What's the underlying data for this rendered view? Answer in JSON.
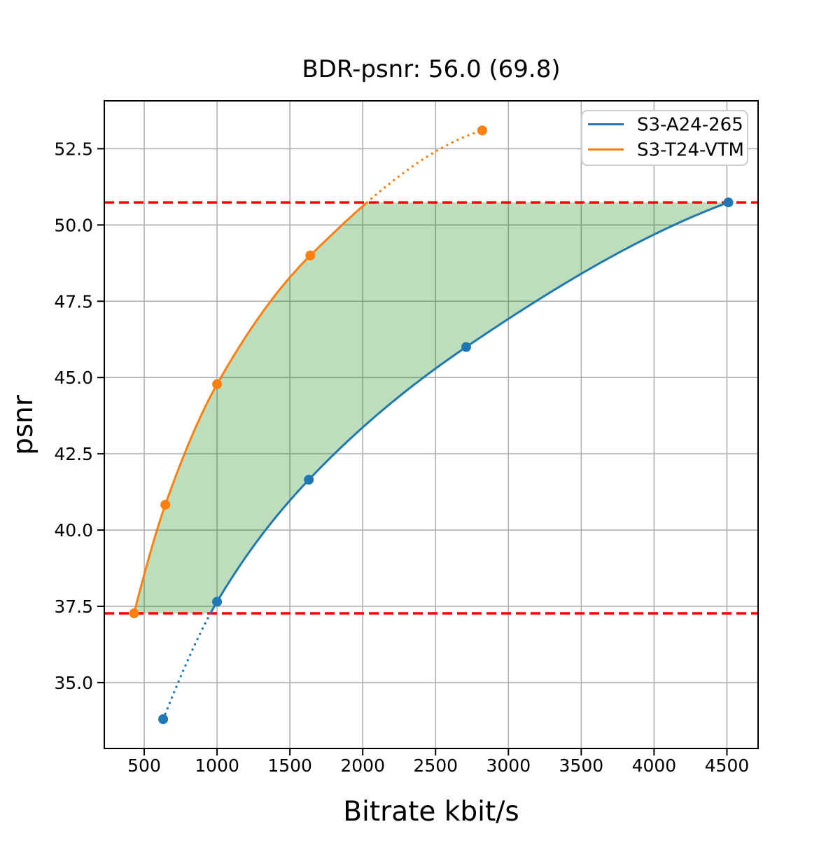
{
  "figure": {
    "background": "#ffffff"
  },
  "chart_data": {
    "type": "line",
    "title": "BDR-psnr: 56.0 (69.8)",
    "xlabel": "Bitrate kbit/s",
    "ylabel": "psnr",
    "xlim": [
      226,
      4714
    ],
    "ylim": [
      32.84,
      54.07
    ],
    "grid": true,
    "grid_color": "#b0b0b0",
    "legend_position": "upper right",
    "xticks": [
      500,
      1000,
      1500,
      2000,
      2500,
      3000,
      3500,
      4000,
      4500
    ],
    "xtick_labels": [
      "500",
      "1000",
      "1500",
      "2000",
      "2500",
      "3000",
      "3500",
      "4000",
      "4500"
    ],
    "yticks": [
      35.0,
      37.5,
      40.0,
      42.5,
      45.0,
      47.5,
      50.0,
      52.5
    ],
    "ytick_labels": [
      "35.0",
      "37.5",
      "40.0",
      "42.5",
      "45.0",
      "47.5",
      "50.0",
      "52.5"
    ],
    "series": [
      {
        "name": "S3-A24-265",
        "color": "#1f77b4",
        "marker": "circle",
        "line_style": "solid-inside-overlap-dotted-outside",
        "points": [
          [
            630,
            33.8
          ],
          [
            1000,
            37.65
          ],
          [
            1630,
            41.65
          ],
          [
            2710,
            46.0
          ],
          [
            4510,
            50.74
          ]
        ]
      },
      {
        "name": "S3-T24-VTM",
        "color": "#ff7f0e",
        "marker": "circle",
        "line_style": "solid-inside-overlap-dotted-outside",
        "points": [
          [
            430,
            37.27
          ],
          [
            645,
            40.83
          ],
          [
            1000,
            44.78
          ],
          [
            1640,
            49.0
          ],
          [
            2820,
            53.1
          ]
        ]
      }
    ],
    "overlap_band": {
      "lower_psnr": 37.27,
      "upper_psnr": 50.74,
      "line_color": "#ff0000",
      "line_style": "dashed",
      "fill_color": "#008000",
      "fill_opacity": 0.26
    },
    "legend": {
      "entries": [
        "S3-A24-265",
        "S3-T24-VTM"
      ]
    }
  }
}
